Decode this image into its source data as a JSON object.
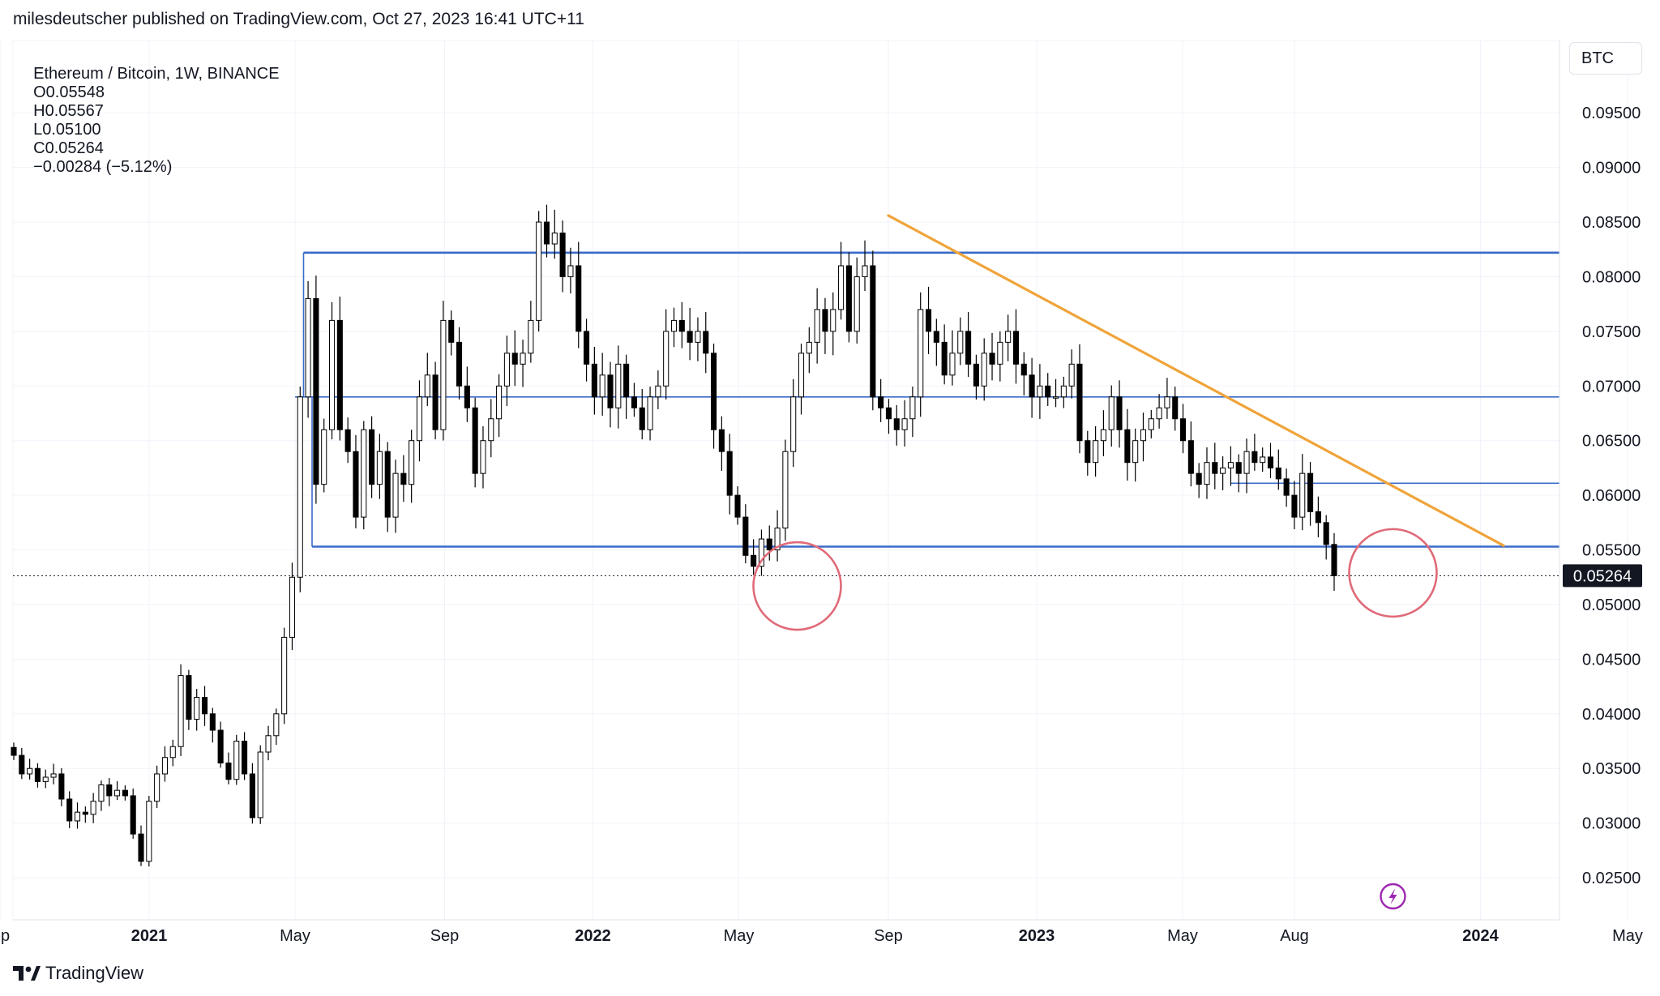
{
  "header": {
    "published": "milesdeutscher published on TradingView.com, Oct 27, 2023 16:41 UTC+11"
  },
  "legend": {
    "symbol": "Ethereum / Bitcoin, 1W, BINANCE",
    "open": "O0.05548",
    "high": "H0.05567",
    "low": "L0.05100",
    "close": "C0.05264",
    "change": "−0.00284 (−5.12%)"
  },
  "currency_button": "BTC",
  "brand": "TradingView",
  "colors": {
    "support_line": "#3b6bc9",
    "trendline": "#f0a43a",
    "circle": "#e06a78",
    "candle_up": "#ffffff",
    "candle_down": "#000000",
    "lightning_badge": "#9c27b0"
  },
  "icons": {
    "lightning": "lightning-icon",
    "logo": "tradingview-logo-icon"
  },
  "chart_data": {
    "type": "candlestick",
    "pair": "ETH/BTC",
    "timeframe": "1W",
    "ylim": [
      0.021,
      0.0985
    ],
    "y_ticks": [
      "0.02500",
      "0.03000",
      "0.03500",
      "0.04000",
      "0.04500",
      "0.05000",
      "0.05500",
      "0.06000",
      "0.06500",
      "0.07000",
      "0.07500",
      "0.08000",
      "0.08500",
      "0.09000",
      "0.09500"
    ],
    "x_ticks": [
      {
        "label": "ep",
        "date": "2020-09-01",
        "bold": false
      },
      {
        "label": "2021",
        "date": "2021-01-01",
        "bold": true
      },
      {
        "label": "May",
        "date": "2021-05-01",
        "bold": false
      },
      {
        "label": "Sep",
        "date": "2021-09-01",
        "bold": false
      },
      {
        "label": "2022",
        "date": "2022-01-01",
        "bold": true
      },
      {
        "label": "May",
        "date": "2022-05-01",
        "bold": false
      },
      {
        "label": "Sep",
        "date": "2022-09-01",
        "bold": false
      },
      {
        "label": "2023",
        "date": "2023-01-01",
        "bold": true
      },
      {
        "label": "May",
        "date": "2023-05-01",
        "bold": false
      },
      {
        "label": "Aug",
        "date": "2023-08-01",
        "bold": false
      },
      {
        "label": "2024",
        "date": "2024-01-01",
        "bold": true
      },
      {
        "label": "May",
        "date": "2024-05-01",
        "bold": false
      }
    ],
    "current_price": "0.05264",
    "close_series": [
      0.0362,
      0.0345,
      0.035,
      0.0338,
      0.0342,
      0.0345,
      0.0322,
      0.0302,
      0.031,
      0.0308,
      0.032,
      0.0335,
      0.0325,
      0.033,
      0.0325,
      0.029,
      0.0265,
      0.032,
      0.0345,
      0.036,
      0.037,
      0.0435,
      0.0395,
      0.0415,
      0.04,
      0.0385,
      0.0355,
      0.034,
      0.0375,
      0.0345,
      0.0305,
      0.0365,
      0.038,
      0.04,
      0.047,
      0.0525,
      0.069,
      0.078,
      0.061,
      0.066,
      0.076,
      0.066,
      0.064,
      0.058,
      0.066,
      0.061,
      0.064,
      0.058,
      0.062,
      0.061,
      0.065,
      0.069,
      0.071,
      0.066,
      0.076,
      0.074,
      0.07,
      0.068,
      0.062,
      0.065,
      0.067,
      0.07,
      0.073,
      0.072,
      0.073,
      0.076,
      0.085,
      0.083,
      0.084,
      0.08,
      0.081,
      0.075,
      0.072,
      0.069,
      0.071,
      0.068,
      0.072,
      0.069,
      0.068,
      0.066,
      0.069,
      0.07,
      0.075,
      0.076,
      0.075,
      0.074,
      0.075,
      0.073,
      0.066,
      0.064,
      0.06,
      0.058,
      0.0545,
      0.0535,
      0.056,
      0.055,
      0.057,
      0.064,
      0.069,
      0.073,
      0.074,
      0.077,
      0.075,
      0.077,
      0.081,
      0.075,
      0.08,
      0.081,
      0.069,
      0.068,
      0.067,
      0.066,
      0.067,
      0.069,
      0.077,
      0.075,
      0.074,
      0.071,
      0.073,
      0.075,
      0.072,
      0.07,
      0.073,
      0.072,
      0.074,
      0.075,
      0.072,
      0.071,
      0.069,
      0.07,
      0.069,
      0.069,
      0.07,
      0.072,
      0.065,
      0.063,
      0.065,
      0.066,
      0.069,
      0.066,
      0.063,
      0.065,
      0.066,
      0.067,
      0.068,
      0.069,
      0.067,
      0.065,
      0.062,
      0.061,
      0.063,
      0.062,
      0.0625,
      0.063,
      0.062,
      0.064,
      0.063,
      0.0635,
      0.0625,
      0.0615,
      0.06,
      0.058,
      0.062,
      0.0585,
      0.0575,
      0.0555,
      0.05264
    ],
    "levels": [
      {
        "name": "range-top",
        "price": 0.0822,
        "start_date": "2021-05-08"
      },
      {
        "name": "mid-range",
        "price": 0.069,
        "start_date": "2021-05-01"
      },
      {
        "name": "range-bottom",
        "price": 0.0553,
        "start_date": "2021-05-15"
      },
      {
        "name": "local-support",
        "price": 0.0611,
        "start_date": "2023-06-10"
      }
    ],
    "trendline": {
      "from": {
        "date": "2022-09-01",
        "price": 0.0856
      },
      "to": {
        "date": "2024-01-20",
        "price": 0.0554
      }
    },
    "circles": [
      {
        "date": "2022-06-18",
        "price": 0.0517
      },
      {
        "date": "2023-10-21",
        "price": 0.0529
      }
    ]
  }
}
